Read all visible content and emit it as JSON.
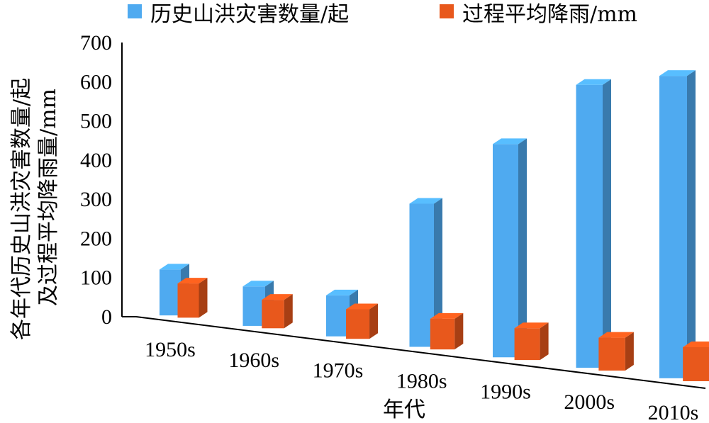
{
  "chart_data": {
    "type": "bar",
    "categories": [
      "1950s",
      "1960s",
      "1970s",
      "1980s",
      "1990s",
      "2000s",
      "2010s"
    ],
    "series": [
      {
        "name": "历史山洪灾害数量/起",
        "values": [
          115,
          95,
          95,
          320,
          460,
          590,
          610
        ],
        "color": "#4faaf0"
      },
      {
        "name": "过程平均降雨/mm",
        "values": [
          85,
          68,
          68,
          68,
          68,
          68,
          68
        ],
        "color": "#e8581c"
      }
    ],
    "yticks": [
      0,
      100,
      200,
      300,
      400,
      500,
      600,
      700
    ],
    "ylim": [
      0,
      700
    ],
    "ylabel_line1": "各年代历史山洪灾害数量/起",
    "ylabel_line2": "及过程平均降雨量/mm",
    "xlabel": "年代",
    "legend_position": "top",
    "grid": false
  }
}
